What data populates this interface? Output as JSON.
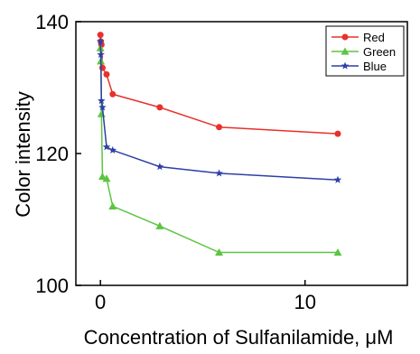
{
  "chart_data": {
    "type": "line",
    "title": "",
    "xlabel": "Concentration of Sulfanilamide, μM",
    "ylabel": "Color intensity",
    "xlim": [
      -1.2,
      15
    ],
    "ylim": [
      100,
      140
    ],
    "xticks": [
      0,
      10
    ],
    "yticks": [
      100,
      120,
      140
    ],
    "legend_position": "top-right",
    "grid": false,
    "series": [
      {
        "name": "Red",
        "color": "#e8312b",
        "marker": "circle",
        "x": [
          0,
          0.02,
          0.05,
          0.1,
          0.3,
          0.6,
          2.9,
          5.8,
          11.6
        ],
        "y": [
          138,
          137,
          136.5,
          133,
          132,
          129,
          127,
          124,
          123
        ]
      },
      {
        "name": "Green",
        "color": "#5cc542",
        "marker": "triangle",
        "x": [
          0,
          0.02,
          0.05,
          0.1,
          0.3,
          0.6,
          2.9,
          5.8,
          11.6
        ],
        "y": [
          136,
          134,
          126,
          116.5,
          116.2,
          112,
          109,
          105,
          105
        ]
      },
      {
        "name": "Blue",
        "color": "#2e3fa6",
        "marker": "star",
        "x": [
          0,
          0.02,
          0.05,
          0.1,
          0.3,
          0.6,
          2.9,
          5.8,
          11.6
        ],
        "y": [
          137,
          135,
          128,
          127,
          121,
          120.5,
          118,
          117,
          116
        ]
      }
    ]
  }
}
